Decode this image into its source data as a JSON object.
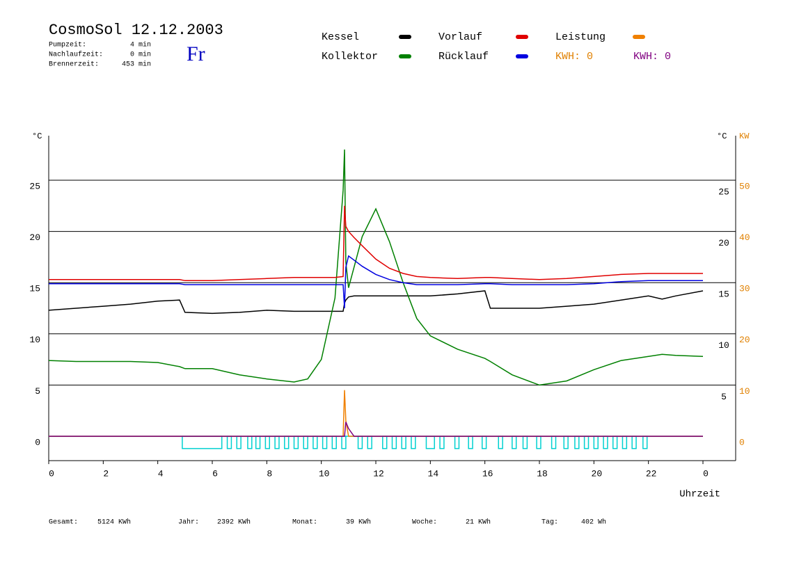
{
  "chart_data": {
    "type": "line",
    "title": "CosmoSol 12.12.2003",
    "weekday": "Fr",
    "stats": [
      {
        "label": "Pumpzeit:",
        "value": "4 min"
      },
      {
        "label": "Nachlaufzeit:",
        "value": "0 min"
      },
      {
        "label": "Brennerzeit:",
        "value": "453 min"
      }
    ],
    "kwh_labels": [
      {
        "text": "KWH: 0",
        "color": "#e08000"
      },
      {
        "text": "KWH: 0",
        "color": "#800080"
      }
    ],
    "y_label": "°C",
    "y2_label_c": "°C",
    "y2_label": "KW",
    "x_label": "Uhrzeit",
    "x": [
      0,
      1,
      2,
      3,
      4,
      4.8,
      5,
      6,
      7,
      8,
      9,
      9.5,
      10,
      10.5,
      10.8,
      10.85,
      10.9,
      11,
      11.2,
      11.5,
      12,
      12.5,
      13,
      13.5,
      14,
      15,
      16,
      16.2,
      17,
      18,
      19,
      20,
      21,
      22,
      22.5,
      23,
      24
    ],
    "series": [
      {
        "name": "Kessel",
        "color": "#000000",
        "values": [
          12.3,
          12.5,
          12.7,
          12.9,
          13.2,
          13.3,
          12.1,
          12.0,
          12.1,
          12.3,
          12.2,
          12.2,
          12.2,
          12.2,
          12.2,
          13.0,
          13.3,
          13.6,
          13.7,
          13.7,
          13.7,
          13.7,
          13.7,
          13.7,
          13.7,
          13.9,
          14.2,
          12.5,
          12.5,
          12.5,
          12.7,
          12.9,
          13.3,
          13.7,
          13.4,
          13.7,
          14.2
        ]
      },
      {
        "name": "Kollektor",
        "color": "#008000",
        "values": [
          7.4,
          7.3,
          7.3,
          7.3,
          7.2,
          6.8,
          6.6,
          6.6,
          6.0,
          5.6,
          5.3,
          5.6,
          7.5,
          13.5,
          24.0,
          28.0,
          17.0,
          14.5,
          16.5,
          19.5,
          22.2,
          19.0,
          15.0,
          11.5,
          9.8,
          8.5,
          7.6,
          7.3,
          6.0,
          5.0,
          5.4,
          6.5,
          7.4,
          7.8,
          8.0,
          7.9,
          7.8
        ]
      },
      {
        "name": "Vorlauf",
        "color": "#e00000",
        "values": [
          15.3,
          15.3,
          15.3,
          15.3,
          15.3,
          15.3,
          15.2,
          15.2,
          15.3,
          15.4,
          15.5,
          15.5,
          15.5,
          15.5,
          15.6,
          22.5,
          20.5,
          20.0,
          19.4,
          18.6,
          17.3,
          16.4,
          15.9,
          15.6,
          15.5,
          15.4,
          15.5,
          15.5,
          15.4,
          15.3,
          15.4,
          15.6,
          15.8,
          15.9,
          15.9,
          15.9,
          15.9
        ]
      },
      {
        "name": "Rücklauf",
        "color": "#0000e0",
        "values": [
          14.9,
          14.9,
          14.9,
          14.9,
          14.9,
          14.9,
          14.8,
          14.8,
          14.8,
          14.8,
          14.8,
          14.8,
          14.8,
          14.8,
          14.8,
          12.5,
          16.5,
          17.6,
          17.2,
          16.6,
          15.8,
          15.3,
          15.0,
          14.8,
          14.8,
          14.8,
          14.9,
          14.9,
          14.8,
          14.8,
          14.8,
          14.9,
          15.1,
          15.2,
          15.2,
          15.2,
          15.2
        ]
      },
      {
        "name": "Leistung",
        "color": "#f08000",
        "axis": "y2",
        "values": [
          0,
          0,
          0,
          0,
          0,
          0,
          0,
          0,
          0,
          0,
          0,
          0,
          0,
          0,
          0,
          9,
          3,
          0,
          0,
          0,
          0,
          0,
          0,
          0,
          0,
          0,
          0,
          0,
          0,
          0,
          0,
          0,
          0,
          0,
          0,
          0,
          0
        ]
      },
      {
        "color": "#800080",
        "axis": "y2",
        "values": [
          0,
          0,
          0,
          0,
          0,
          0,
          0,
          0,
          0,
          0,
          0,
          0,
          0,
          0,
          0,
          0,
          2.8,
          1.5,
          0,
          0,
          0,
          0,
          0,
          0,
          0,
          0,
          0,
          0,
          0,
          0,
          0,
          0,
          0,
          0,
          0,
          0,
          0
        ]
      }
    ],
    "pump_color": "#00d0d0",
    "pump_intervals": [
      [
        4.9,
        6.35
      ],
      [
        6.55,
        6.7
      ],
      [
        6.9,
        7.05
      ],
      [
        7.3,
        7.45
      ],
      [
        7.6,
        7.75
      ],
      [
        7.95,
        8.1
      ],
      [
        8.3,
        8.45
      ],
      [
        8.65,
        8.8
      ],
      [
        9.0,
        9.15
      ],
      [
        9.35,
        9.5
      ],
      [
        9.7,
        9.85
      ],
      [
        10.05,
        10.2
      ],
      [
        10.4,
        10.55
      ],
      [
        10.75,
        10.9
      ],
      [
        11.35,
        11.5
      ],
      [
        11.7,
        11.85
      ],
      [
        12.25,
        12.4
      ],
      [
        12.6,
        12.75
      ],
      [
        12.95,
        13.1
      ],
      [
        13.3,
        13.45
      ],
      [
        13.85,
        14.15
      ],
      [
        14.35,
        14.5
      ],
      [
        14.9,
        15.05
      ],
      [
        15.4,
        15.55
      ],
      [
        15.9,
        16.05
      ],
      [
        16.5,
        16.65
      ],
      [
        17.0,
        17.15
      ],
      [
        17.4,
        17.55
      ],
      [
        17.9,
        18.05
      ],
      [
        18.45,
        18.6
      ],
      [
        18.9,
        19.05
      ],
      [
        19.3,
        19.45
      ],
      [
        19.65,
        19.8
      ],
      [
        20.0,
        20.15
      ],
      [
        20.35,
        20.5
      ],
      [
        20.7,
        20.85
      ],
      [
        21.05,
        21.2
      ],
      [
        21.4,
        21.55
      ],
      [
        21.8,
        21.95
      ]
    ],
    "xlim": [
      0,
      25.2
    ],
    "xticks": [
      0,
      2,
      4,
      6,
      8,
      10,
      12,
      14,
      16,
      18,
      20,
      22,
      {
        "value": 24,
        "label": "0"
      }
    ],
    "ylim": [
      -2.38,
      29.35
    ],
    "yticks": [
      0,
      5,
      10,
      15,
      20,
      25
    ],
    "y2lim": [
      -4.76,
      58.7
    ],
    "y2ticks": [
      0,
      10,
      20,
      30,
      40,
      50
    ],
    "grid": true,
    "footer": [
      {
        "label": "Gesamt:",
        "value": "5124 KWh"
      },
      {
        "label": "Jahr:",
        "value": "2392 KWh"
      },
      {
        "label": "Monat:",
        "value": "39 KWh"
      },
      {
        "label": "Woche:",
        "value": "21 KWh"
      },
      {
        "label": "Tag:",
        "value": "402 Wh"
      }
    ]
  }
}
